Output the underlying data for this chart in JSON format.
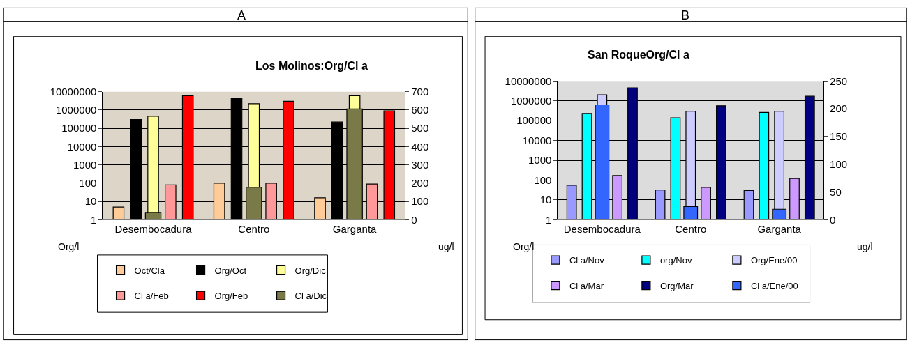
{
  "chart_data": [
    {
      "type": "bar",
      "title": "Los Molinos:Org/Cl a",
      "annotations": [
        "A"
      ],
      "ylabel": "Org/l",
      "y2label": "ug/l",
      "categories": [
        "Desembocadura",
        "Centro",
        "Garganta"
      ],
      "series": [
        {
          "name": "Oct/Cla",
          "color": "#ffcc99",
          "values": [
            5,
            100,
            16
          ]
        },
        {
          "name": "Org/Oct",
          "color": "#000000",
          "values": [
            300000,
            4500000,
            220000
          ]
        },
        {
          "name": "Org/Dic",
          "color": "#ffff99",
          "values": [
            450000,
            2200000,
            6000000
          ]
        },
        {
          "name": "Cl a/Feb",
          "color": "#ff9999",
          "values": [
            80,
            100,
            90
          ]
        },
        {
          "name": "Org/Feb",
          "color": "#ff0000",
          "values": [
            6000000,
            3000000,
            900000
          ]
        },
        {
          "name": "Cl a/Dic",
          "color": "#7a7a48",
          "axis": "y2",
          "values": [
            40,
            178,
            606
          ]
        }
      ],
      "log": "y",
      "ylim": [
        1,
        10000000
      ],
      "yticks": [
        1,
        10,
        100,
        1000,
        10000,
        100000,
        1000000,
        10000000
      ],
      "y2lim": [
        0,
        700
      ],
      "y2ticks": [
        0,
        100,
        200,
        300,
        400,
        500,
        600,
        700
      ],
      "grid": "y",
      "legend": "bottom"
    },
    {
      "type": "bar",
      "title": "San RoqueOrg/Cl a",
      "annotations": [
        "B"
      ],
      "ylabel": "Org/l",
      "y2label": "ug/l",
      "categories": [
        "Desembocadura",
        "Centro",
        "Garganta"
      ],
      "series": [
        {
          "name": "Cl a/Nov",
          "color": "#9999ff",
          "values": [
            55,
            32,
            30
          ]
        },
        {
          "name": "org/Nov",
          "color": "#00ffff",
          "values": [
            230000,
            140000,
            260000
          ]
        },
        {
          "name": "Org/Ene/00",
          "color": "#ccccff",
          "values": [
            2000000,
            300000,
            300000
          ]
        },
        {
          "name": "Cl a/Mar",
          "color": "#cc99ff",
          "values": [
            170,
            43,
            120
          ]
        },
        {
          "name": "Org/Mar",
          "color": "#000080",
          "values": [
            4500000,
            560000,
            1700000
          ]
        },
        {
          "name": "Cl a/Ene/00",
          "color": "#3366ff",
          "axis": "y2",
          "values": [
            207,
            24,
            19
          ]
        }
      ],
      "log": "y",
      "ylim": [
        1,
        10000000
      ],
      "yticks": [
        1,
        10,
        100,
        1000,
        10000,
        100000,
        1000000,
        10000000
      ],
      "y2lim": [
        0,
        250
      ],
      "y2ticks": [
        0,
        50,
        100,
        150,
        200,
        250
      ],
      "grid": "y",
      "legend": "bottom"
    }
  ]
}
